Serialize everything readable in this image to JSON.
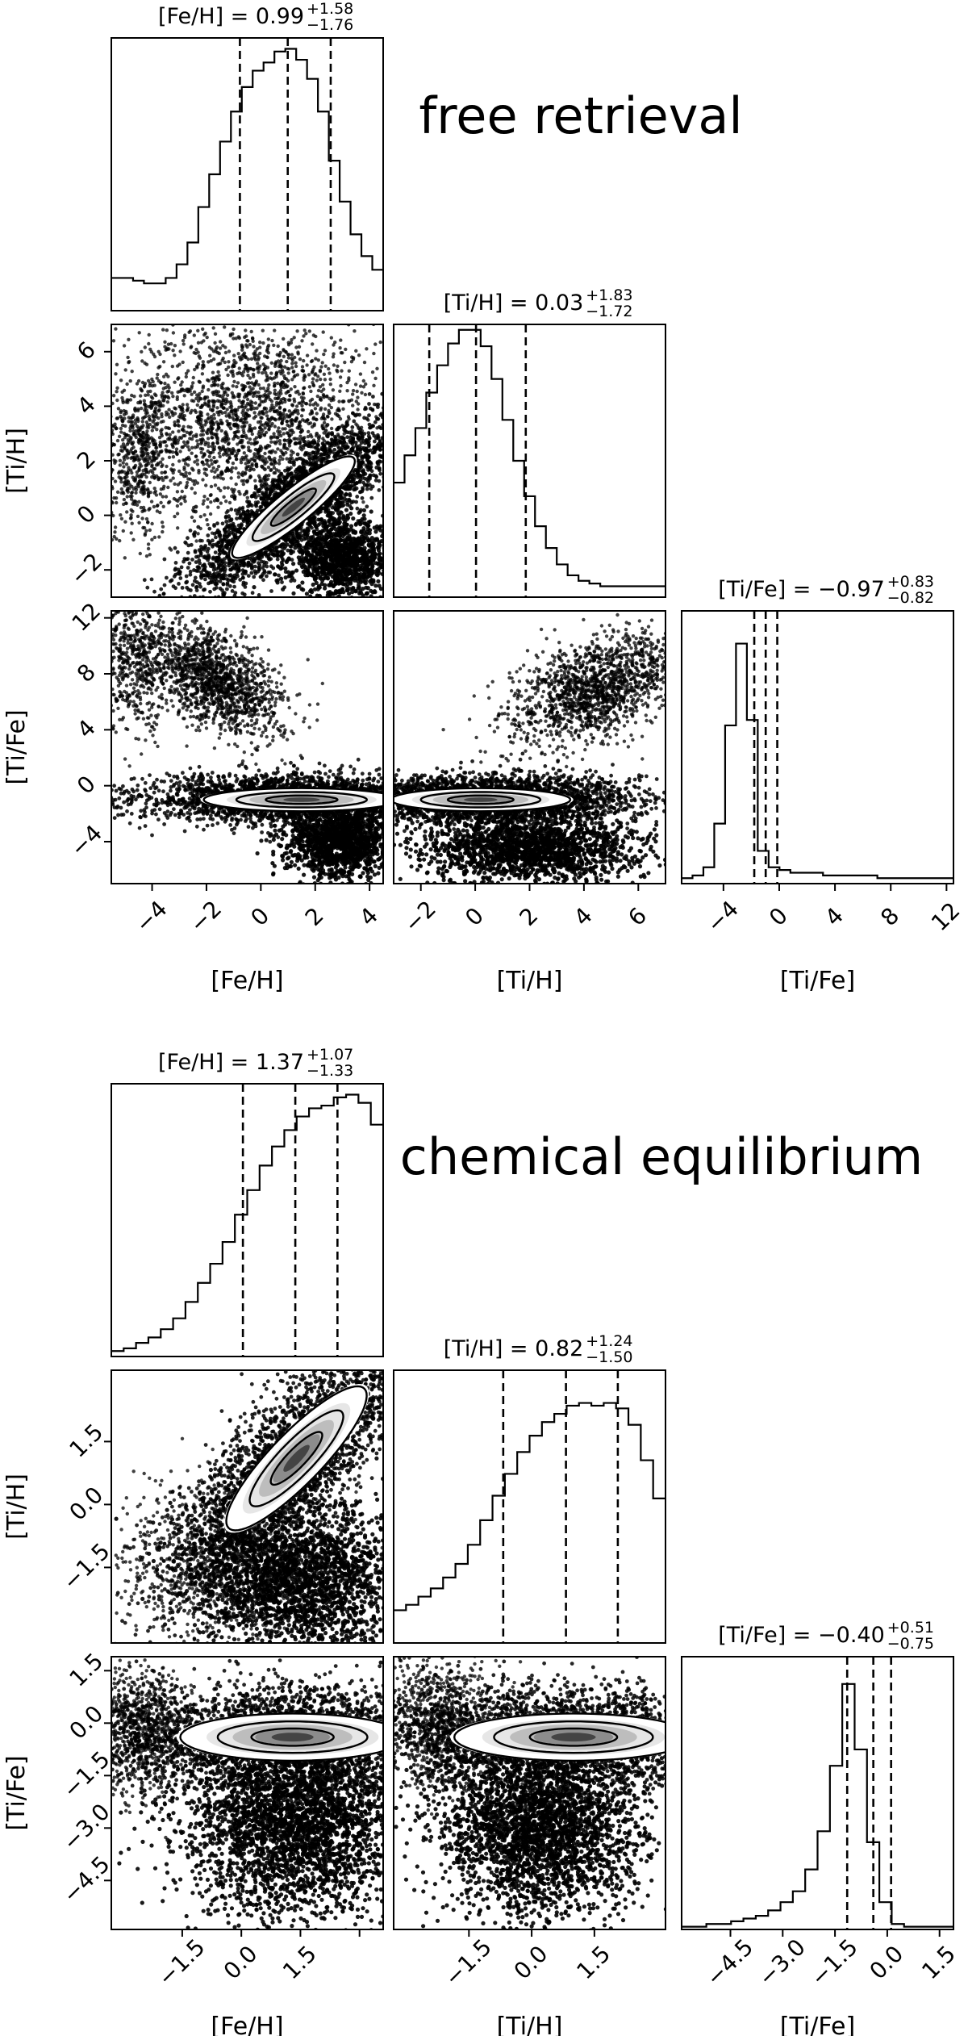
{
  "chart_data": [
    {
      "type": "corner",
      "title": "free retrieval",
      "parameters": [
        {
          "name": "[Fe/H]",
          "median": "0.99",
          "plus": "+1.58",
          "minus": "−1.76",
          "range": [
            -5.5,
            4.5
          ],
          "ticks": [
            -4,
            -2,
            0,
            2,
            4
          ],
          "tick_labels": [
            "−4",
            "−2",
            "0",
            "2",
            "4"
          ],
          "quantiles": [
            -0.77,
            0.99,
            2.57
          ]
        },
        {
          "name": "[Ti/H]",
          "median": "0.03",
          "plus": "+1.83",
          "minus": "−1.72",
          "range": [
            -3,
            7
          ],
          "ticks": [
            -2,
            0,
            2,
            4,
            6
          ],
          "tick_labels": [
            "−2",
            "0",
            "2",
            "4",
            "6"
          ],
          "quantiles": [
            -1.69,
            0.03,
            1.86
          ]
        },
        {
          "name": "[Ti/Fe]",
          "median": "−0.97",
          "plus": "+0.83",
          "minus": "−0.82",
          "range": [
            -7,
            12.5
          ],
          "ticks": [
            -4,
            0,
            4,
            8,
            12
          ],
          "tick_labels": [
            "−4",
            "0",
            "4",
            "8",
            "12"
          ],
          "quantiles": [
            -1.79,
            -0.97,
            -0.14
          ]
        }
      ],
      "hist": [
        [
          0.12,
          0.12,
          0.11,
          0.1,
          0.1,
          0.12,
          0.17,
          0.25,
          0.38,
          0.5,
          0.62,
          0.73,
          0.82,
          0.88,
          0.91,
          0.95,
          0.96,
          0.92,
          0.85,
          0.73,
          0.55,
          0.4,
          0.28,
          0.2,
          0.15
        ],
        [
          0.42,
          0.52,
          0.62,
          0.75,
          0.85,
          0.93,
          0.98,
          0.98,
          0.92,
          0.8,
          0.65,
          0.5,
          0.37,
          0.26,
          0.18,
          0.12,
          0.08,
          0.06,
          0.05,
          0.04,
          0.04,
          0.04,
          0.04,
          0.04,
          0.04
        ],
        [
          0.02,
          0.03,
          0.06,
          0.22,
          0.58,
          0.88,
          0.6,
          0.12,
          0.06,
          0.05,
          0.04,
          0.04,
          0.04,
          0.03,
          0.03,
          0.03,
          0.03,
          0.03,
          0.02,
          0.02,
          0.02,
          0.02,
          0.02,
          0.02,
          0.02
        ]
      ]
    },
    {
      "type": "corner",
      "title": "chemical equilibrium",
      "parameters": [
        {
          "name": "[Fe/H]",
          "median": "1.37",
          "plus": "+1.07",
          "minus": "−1.33",
          "range": [
            -3.3,
            3.6
          ],
          "ticks": [
            -1.5,
            0.0,
            1.5,
            3.0
          ],
          "tick_labels": [
            "−1.5",
            "0.0",
            "1.5",
            ""
          ],
          "quantiles": [
            0.04,
            1.37,
            2.44
          ]
        },
        {
          "name": "[Ti/H]",
          "median": "0.82",
          "plus": "+1.24",
          "minus": "−1.50",
          "range": [
            -3.3,
            3.2
          ],
          "ticks": [
            -1.5,
            0.0,
            1.5
          ],
          "tick_labels": [
            "−1.5",
            "0.0",
            "1.5"
          ],
          "quantiles": [
            -0.68,
            0.82,
            2.06
          ]
        },
        {
          "name": "[Ti/Fe]",
          "median": "−0.40",
          "plus": "+0.51",
          "minus": "−0.75",
          "range": [
            -5.9,
            1.9
          ],
          "ticks": [
            -4.5,
            -3.0,
            -1.5,
            0.0,
            1.5
          ],
          "tick_labels": [
            "−4.5",
            "−3.0",
            "−1.5",
            "0.0",
            "1.5"
          ],
          "quantiles": [
            -1.15,
            -0.4,
            0.11
          ]
        }
      ],
      "hist": [
        [
          0.02,
          0.03,
          0.05,
          0.07,
          0.1,
          0.14,
          0.2,
          0.27,
          0.34,
          0.42,
          0.52,
          0.61,
          0.7,
          0.77,
          0.83,
          0.88,
          0.91,
          0.92,
          0.95,
          0.96,
          0.93,
          0.85
        ],
        [
          0.12,
          0.14,
          0.17,
          0.2,
          0.24,
          0.29,
          0.36,
          0.45,
          0.54,
          0.62,
          0.7,
          0.76,
          0.81,
          0.84,
          0.87,
          0.88,
          0.87,
          0.88,
          0.86,
          0.8,
          0.67,
          0.53
        ],
        [
          0.01,
          0.01,
          0.02,
          0.02,
          0.03,
          0.04,
          0.05,
          0.07,
          0.1,
          0.14,
          0.22,
          0.36,
          0.6,
          0.9,
          0.66,
          0.32,
          0.1,
          0.02,
          0.01,
          0.01,
          0.01,
          0.01
        ]
      ],
      "x_tick_labels_shown": [
        "−1.5",
        "0.0",
        "1.5"
      ]
    }
  ]
}
